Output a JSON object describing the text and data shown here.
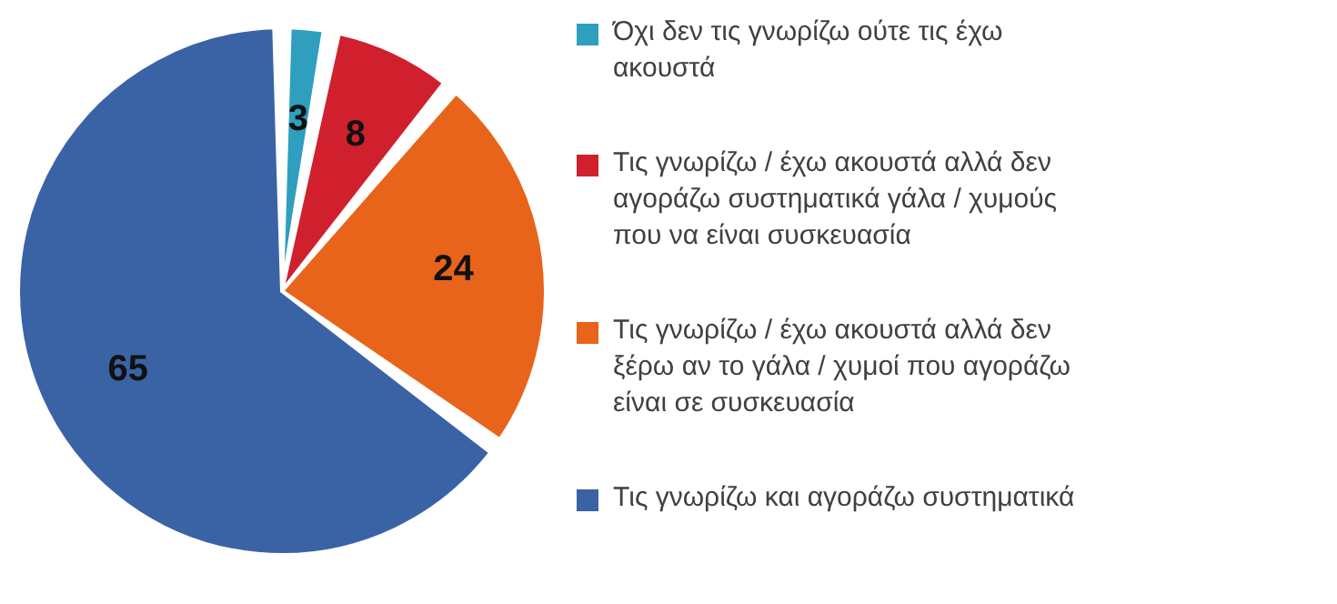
{
  "chart_data": {
    "type": "pie",
    "categories": [
      "Όχι δεν τις γνωρίζω ούτε τις έχω ακουστά",
      "Τις γνωρίζω / έχω ακουστά αλλά δεν αγοράζω συστηματικά γάλα / χυμούς που να είναι συσκευασία",
      "Τις γνωρίζω / έχω ακουστά αλλά δεν ξέρω αν το γάλα / χυμοί που αγοράζω είναι σε συσκευασία",
      "Τις γνωρίζω και αγοράζω συστηματικά"
    ],
    "values": [
      3,
      8,
      24,
      65
    ],
    "colors": [
      "#2e9fbf",
      "#d0202e",
      "#e8641b",
      "#3a63a6"
    ],
    "data_labels": true,
    "legend": "right"
  }
}
